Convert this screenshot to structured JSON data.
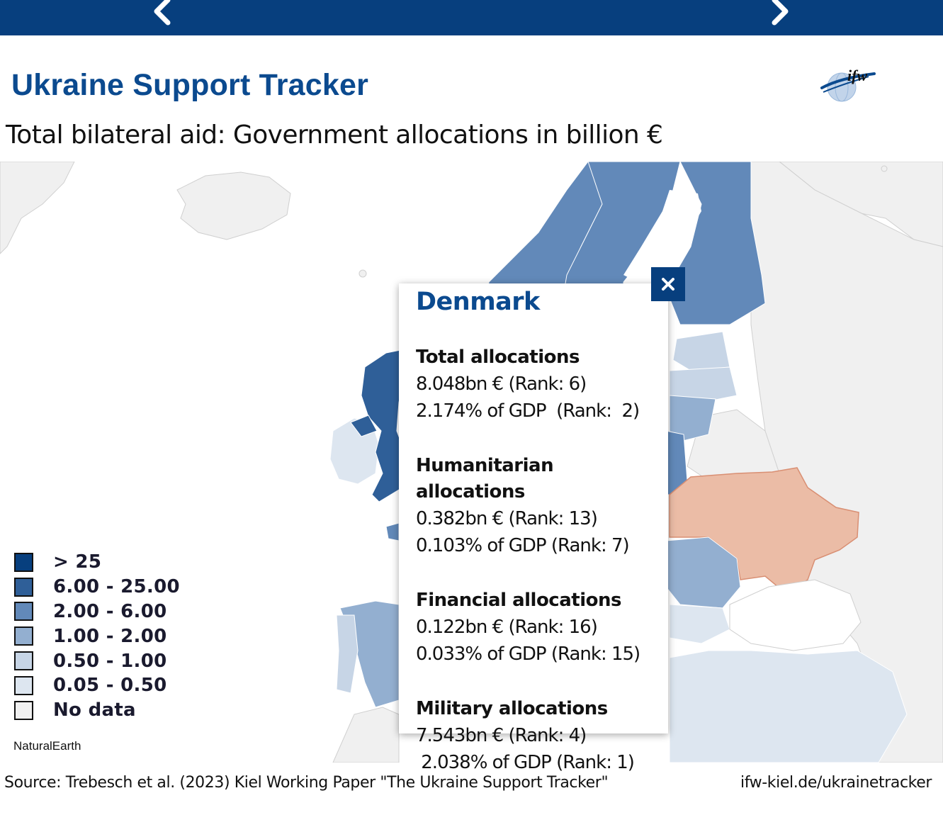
{
  "header": {
    "title": "Ukraine Support Tracker",
    "logo_text": "ifw",
    "prev_icon": "chevron-left-icon",
    "next_icon": "chevron-right-icon"
  },
  "subtitle": "Total bilateral aid: Government allocations in billion €",
  "legend": [
    {
      "label": "> 25",
      "color": "#073f7e"
    },
    {
      "label": "6.00 - 25.00",
      "color": "#2f5f98"
    },
    {
      "label": "2.00 - 6.00",
      "color": "#6289b9"
    },
    {
      "label": "1.00 - 2.00",
      "color": "#93afd0"
    },
    {
      "label": "0.50 - 1.00",
      "color": "#c7d5e6"
    },
    {
      "label": "0.05 - 0.50",
      "color": "#dde6f0"
    },
    {
      "label": "No data",
      "color": "#f0f0f0"
    }
  ],
  "map": {
    "attribution": "NaturalEarth",
    "highlight_color": "#ebbca6",
    "no_data_color": "#f0f0f0"
  },
  "popup": {
    "country": "Denmark",
    "close_icon": "close-icon",
    "sections": [
      {
        "heading": "Total allocations",
        "line1": "8.048bn € (Rank: 6)",
        "line2": "2.174% of GDP  (Rank:  2)"
      },
      {
        "heading": "Humanitarian allocations",
        "line1": "0.382bn € (Rank: 13)",
        "line2": "0.103% of GDP (Rank: 7)"
      },
      {
        "heading": "Financial allocations",
        "line1": "0.122bn € (Rank: 16)",
        "line2": "0.033% of GDP (Rank: 15)"
      },
      {
        "heading": "Military allocations",
        "line1": "7.543bn € (Rank: 4)",
        "line2": " 2.038% of GDP (Rank: 1)"
      }
    ]
  },
  "footer": {
    "source": "Source: Trebesch et al. (2023) Kiel Working Paper \"The Ukraine Support Tracker\"",
    "link": "ifw-kiel.de/ukrainetracker"
  }
}
